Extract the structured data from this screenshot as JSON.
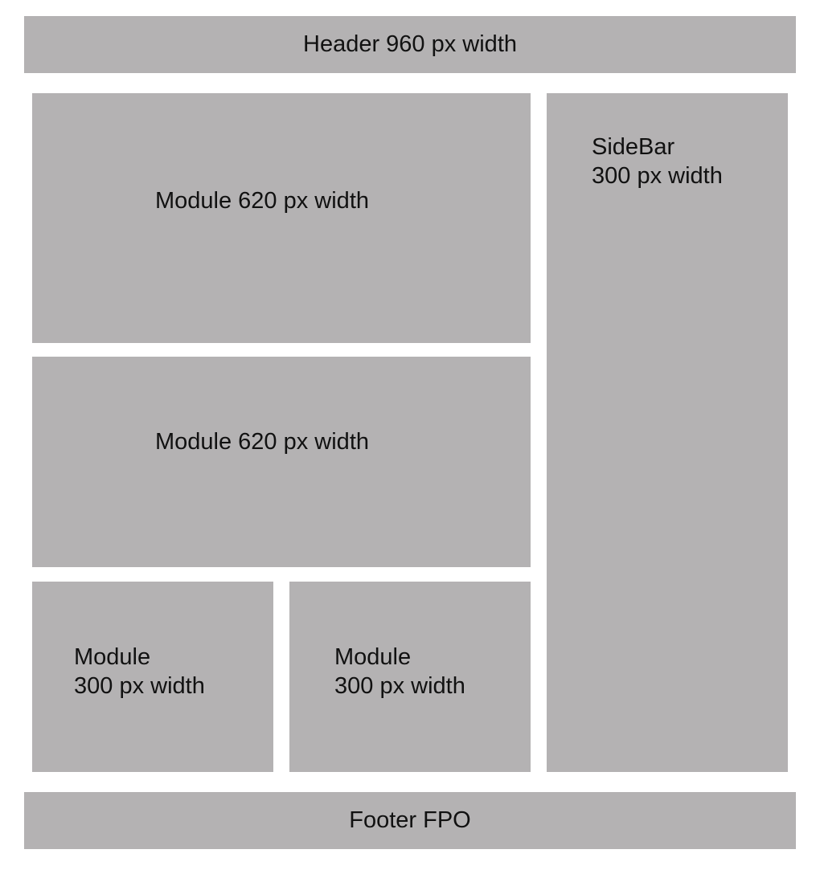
{
  "colors": {
    "block_fill": "#b4b2b3",
    "background": "#ffffff",
    "text": "#111111"
  },
  "header": {
    "label": "Header 960 px width"
  },
  "main": {
    "modules": [
      {
        "label": "Module 620 px width"
      },
      {
        "label": "Module 620 px width"
      },
      {
        "title": "Module",
        "width_label": "300 px width"
      },
      {
        "title": "Module",
        "width_label": "300 px width"
      }
    ]
  },
  "sidebar": {
    "title": "SideBar",
    "width_label": "300 px width"
  },
  "footer": {
    "label": "Footer FPO"
  }
}
